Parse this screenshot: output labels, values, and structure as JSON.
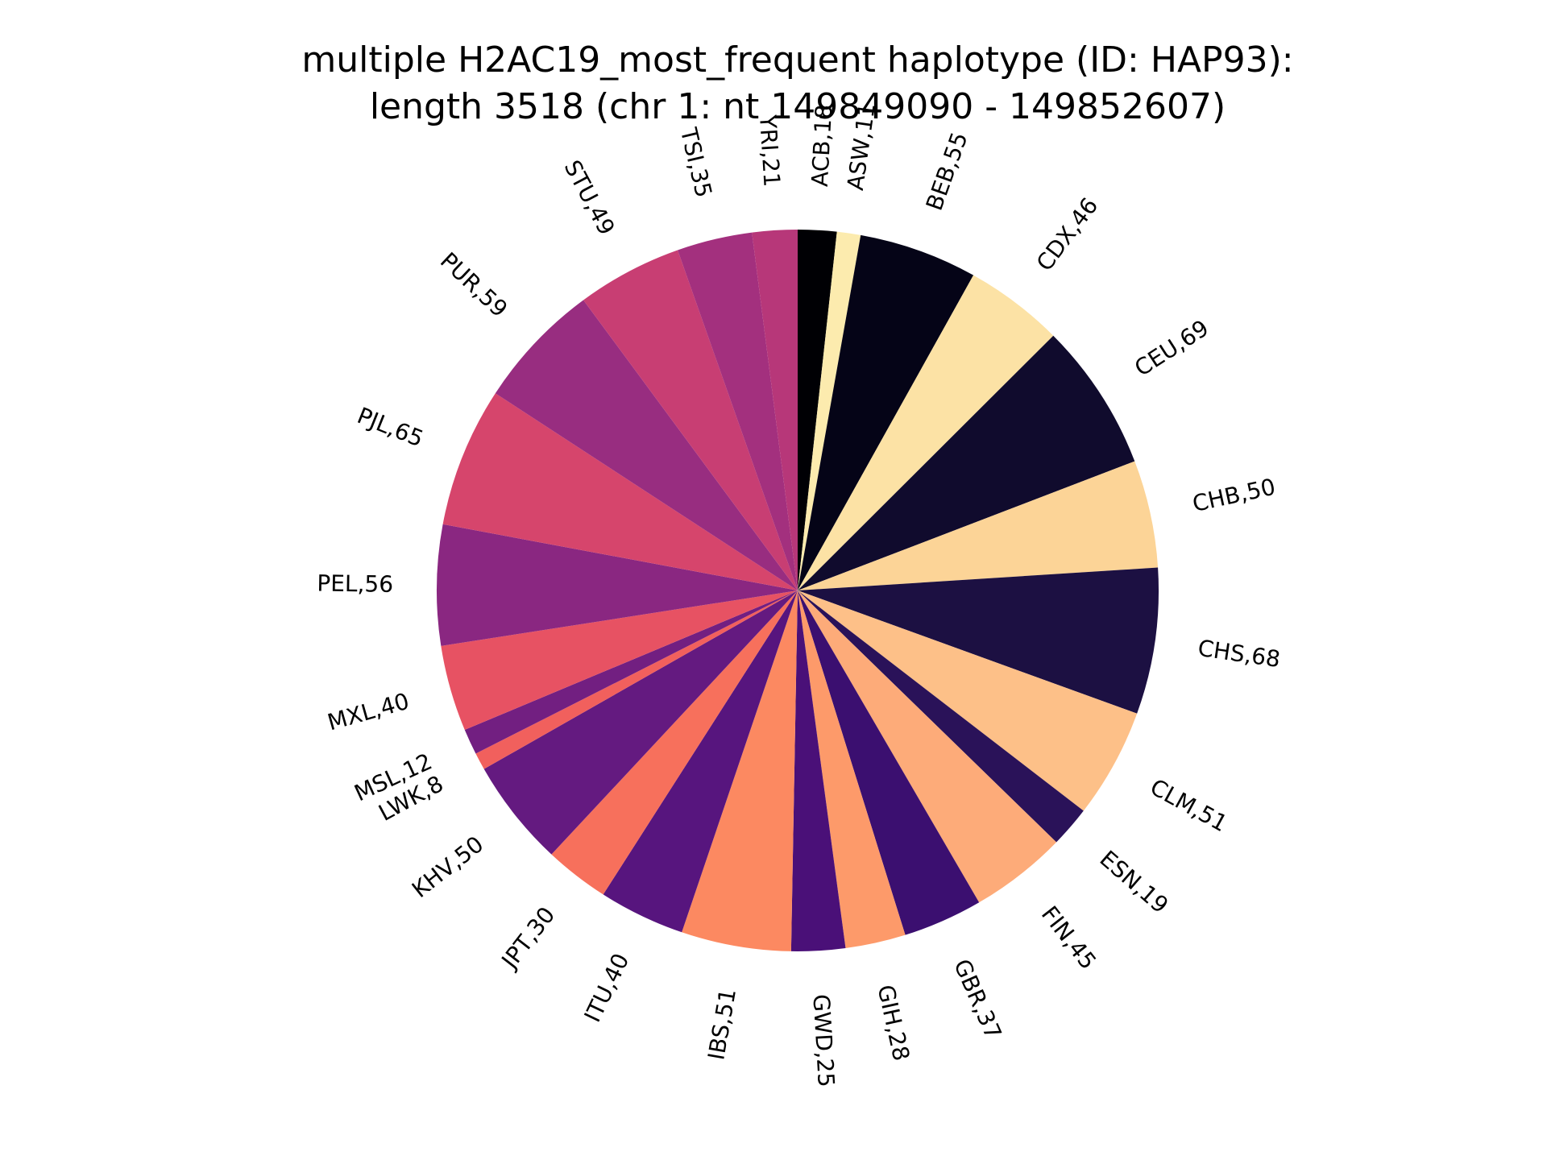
{
  "chart_data": {
    "type": "pie",
    "title_line1": "multiple H2AC19_most_frequent haplotype (ID: HAP93):",
    "title_line2": "length 3518 (chr 1: nt 149849090 - 149852607)",
    "start_angle_deg": 90,
    "direction": "clockwise",
    "slices": [
      {
        "label": "ACB,18",
        "name": "ACB",
        "value": 18,
        "color": "#000004"
      },
      {
        "label": "ASW,11",
        "name": "ASW",
        "value": 11,
        "color": "#fcebae"
      },
      {
        "label": "BEB,55",
        "name": "BEB",
        "value": 55,
        "color": "#050417"
      },
      {
        "label": "CDX,46",
        "name": "CDX",
        "value": 46,
        "color": "#fce2a5"
      },
      {
        "label": "CEU,69",
        "name": "CEU",
        "value": 69,
        "color": "#100b2d"
      },
      {
        "label": "CHB,50",
        "name": "CHB",
        "value": 50,
        "color": "#fcd497"
      },
      {
        "label": "CHS,68",
        "name": "CHS",
        "value": 68,
        "color": "#1c1042"
      },
      {
        "label": "CLM,51",
        "name": "CLM",
        "value": 51,
        "color": "#fdc088"
      },
      {
        "label": "ESN,19",
        "name": "ESN",
        "value": 19,
        "color": "#2a1259"
      },
      {
        "label": "FIN,45",
        "name": "FIN",
        "value": 45,
        "color": "#fdab79"
      },
      {
        "label": "GBR,37",
        "name": "GBR",
        "value": 37,
        "color": "#3b0f70"
      },
      {
        "label": "GIH,28",
        "name": "GIH",
        "value": 28,
        "color": "#fd9a6a"
      },
      {
        "label": "GWD,25",
        "name": "GWD",
        "value": 25,
        "color": "#4a1078"
      },
      {
        "label": "IBS,51",
        "name": "IBS",
        "value": 51,
        "color": "#fc8961"
      },
      {
        "label": "ITU,40",
        "name": "ITU",
        "value": 40,
        "color": "#57157e"
      },
      {
        "label": "JPT,30",
        "name": "JPT",
        "value": 30,
        "color": "#f7705c"
      },
      {
        "label": "KHV,50",
        "name": "KHV",
        "value": 50,
        "color": "#641a80"
      },
      {
        "label": "LWK,8",
        "name": "LWK",
        "value": 8,
        "color": "#f1605d"
      },
      {
        "label": "MSL,12",
        "name": "MSL",
        "value": 12,
        "color": "#721f81"
      },
      {
        "label": "MXL,40",
        "name": "MXL",
        "value": 40,
        "color": "#e75263"
      },
      {
        "label": "PEL,56",
        "name": "PEL",
        "value": 56,
        "color": "#8a2781"
      },
      {
        "label": "PJL,65",
        "name": "PJL",
        "value": 65,
        "color": "#d6456c"
      },
      {
        "label": "PUR,59",
        "name": "PUR",
        "value": 59,
        "color": "#982d80"
      },
      {
        "label": "STU,49",
        "name": "STU",
        "value": 49,
        "color": "#c83e73"
      },
      {
        "label": "TSI,35",
        "name": "TSI",
        "value": 35,
        "color": "#a3307e"
      },
      {
        "label": "YRI,21",
        "name": "YRI",
        "value": 21,
        "color": "#b73779"
      }
    ]
  }
}
